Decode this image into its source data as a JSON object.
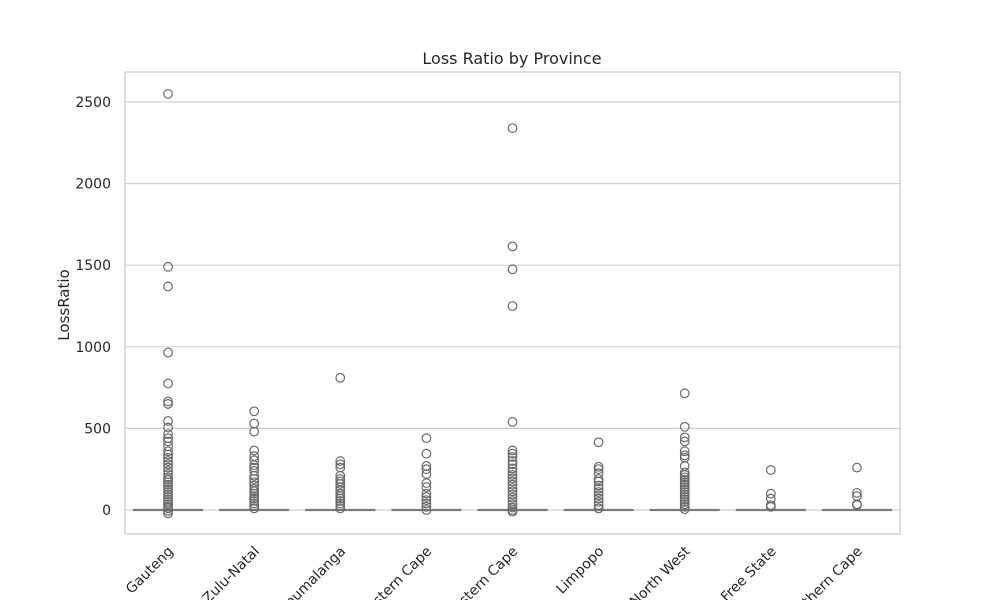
{
  "chart_data": {
    "type": "box",
    "title": "Loss Ratio by Province",
    "xlabel": "",
    "ylabel": "LossRatio",
    "ylim": [
      -150,
      2680
    ],
    "yticks": [
      0,
      500,
      1000,
      1500,
      2000,
      2500
    ],
    "grid": "horizontal",
    "categories": [
      "Gauteng",
      "KwaZulu-Natal",
      "Mpumalanga",
      "Western Cape",
      "Eastern Cape",
      "Limpopo",
      "North West",
      "Free State",
      "Northern Cape"
    ],
    "boxes": [
      {
        "category": "Gauteng",
        "q1": 0,
        "median": 0,
        "q3": 0,
        "whisker_low": 0,
        "whisker_high": 0,
        "outliers": [
          2550,
          1490,
          1370,
          965,
          775,
          665,
          650,
          545,
          505,
          465,
          440,
          420,
          390,
          360,
          340,
          320,
          300,
          280,
          260,
          240,
          220,
          200,
          185,
          170,
          155,
          140,
          125,
          110,
          95,
          80,
          65,
          50,
          35,
          20,
          10,
          -5,
          -20
        ]
      },
      {
        "category": "KwaZulu-Natal",
        "q1": 0,
        "median": 0,
        "q3": 0,
        "whisker_low": 0,
        "whisker_high": 0,
        "outliers": [
          605,
          530,
          480,
          365,
          330,
          305,
          275,
          260,
          240,
          210,
          190,
          170,
          150,
          130,
          115,
          100,
          85,
          70,
          55,
          40,
          25,
          10
        ]
      },
      {
        "category": "Mpumalanga",
        "q1": 0,
        "median": 0,
        "q3": 0,
        "whisker_low": 0,
        "whisker_high": 0,
        "outliers": [
          810,
          300,
          280,
          260,
          210,
          190,
          175,
          160,
          140,
          120,
          100,
          85,
          70,
          55,
          40,
          25,
          10
        ]
      },
      {
        "category": "Western Cape",
        "q1": 0,
        "median": 0,
        "q3": 0,
        "whisker_low": 0,
        "whisker_high": 0,
        "outliers": [
          440,
          345,
          270,
          250,
          220,
          165,
          140,
          100,
          80,
          60,
          40,
          20,
          0
        ]
      },
      {
        "category": "Eastern Cape",
        "q1": 0,
        "median": 0,
        "q3": 0,
        "whisker_low": 0,
        "whisker_high": 0,
        "outliers": [
          2340,
          1615,
          1475,
          1250,
          540,
          365,
          345,
          325,
          300,
          280,
          255,
          235,
          215,
          195,
          175,
          155,
          135,
          115,
          95,
          75,
          55,
          35,
          15,
          0,
          -10
        ]
      },
      {
        "category": "Limpopo",
        "q1": 0,
        "median": 0,
        "q3": 0,
        "whisker_low": 0,
        "whisker_high": 0,
        "outliers": [
          415,
          265,
          250,
          225,
          190,
          175,
          150,
          130,
          110,
          90,
          70,
          50,
          30,
          10
        ]
      },
      {
        "category": "North West",
        "q1": 0,
        "median": 0,
        "q3": 0,
        "whisker_low": 0,
        "whisker_high": 0,
        "outliers": [
          715,
          510,
          445,
          420,
          360,
          335,
          320,
          270,
          230,
          215,
          200,
          185,
          170,
          155,
          140,
          125,
          110,
          95,
          80,
          65,
          50,
          35,
          20,
          5
        ]
      },
      {
        "category": "Free State",
        "q1": 0,
        "median": 0,
        "q3": 0,
        "whisker_low": 0,
        "whisker_high": 0,
        "outliers": [
          245,
          100,
          70,
          30,
          20
        ]
      },
      {
        "category": "Northern Cape",
        "q1": 0,
        "median": 0,
        "q3": 0,
        "whisker_low": 0,
        "whisker_high": 0,
        "outliers": [
          260,
          105,
          85,
          35,
          30
        ]
      }
    ]
  }
}
